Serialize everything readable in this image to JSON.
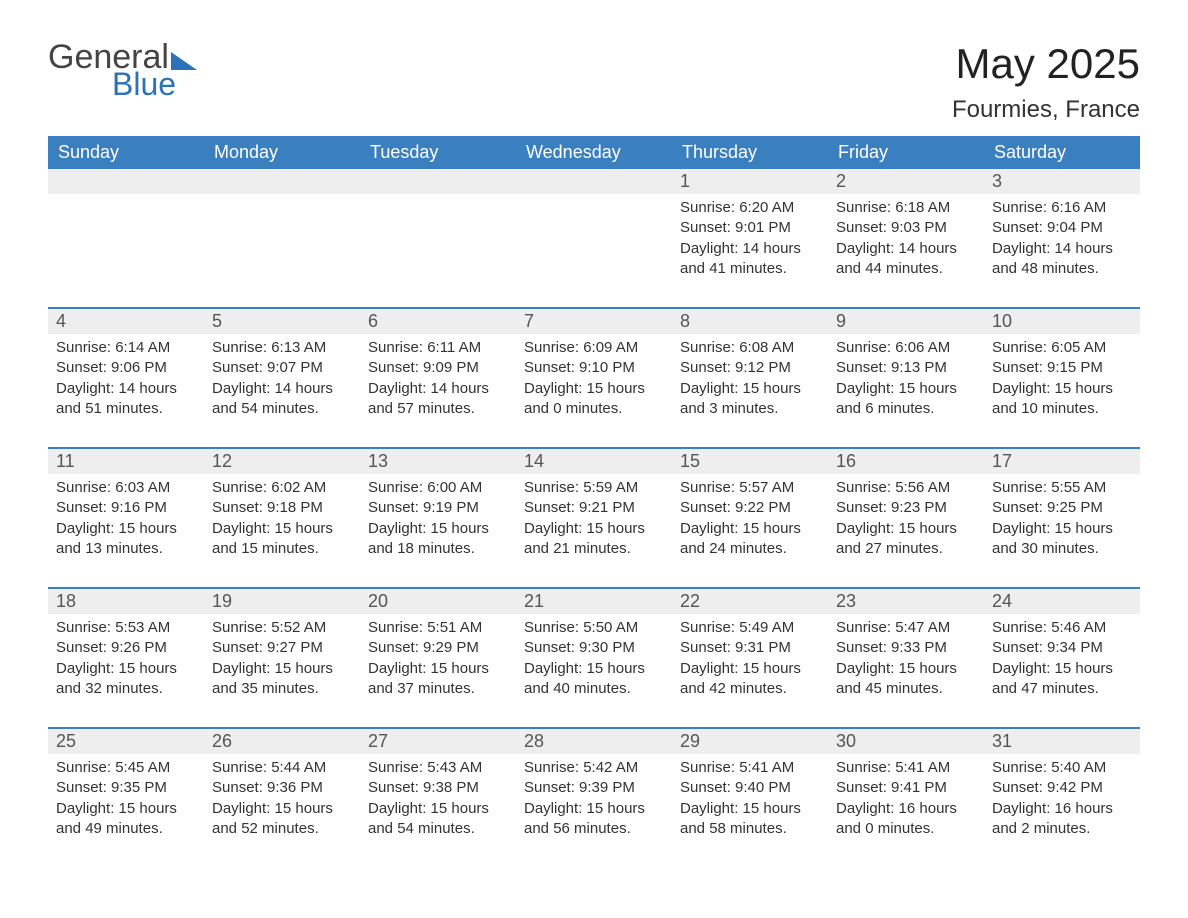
{
  "logo": {
    "general": "General",
    "blue": "Blue"
  },
  "title": "May 2025",
  "location": "Fourmies, France",
  "colors": {
    "header_bg": "#3a7fbf",
    "header_text": "#ffffff",
    "daynum_bg": "#eeeeee",
    "daynum_text": "#555555",
    "body_text": "#333333",
    "accent": "#2b72b8",
    "page_bg": "#ffffff"
  },
  "dow": [
    "Sunday",
    "Monday",
    "Tuesday",
    "Wednesday",
    "Thursday",
    "Friday",
    "Saturday"
  ],
  "labels": {
    "sunrise": "Sunrise:",
    "sunset": "Sunset:",
    "daylight": "Daylight:"
  },
  "weeks": [
    [
      {
        "n": "",
        "empty": true
      },
      {
        "n": "",
        "empty": true
      },
      {
        "n": "",
        "empty": true
      },
      {
        "n": "",
        "empty": true
      },
      {
        "n": "1",
        "sunrise": "6:20 AM",
        "sunset": "9:01 PM",
        "daylight": "14 hours and 41 minutes."
      },
      {
        "n": "2",
        "sunrise": "6:18 AM",
        "sunset": "9:03 PM",
        "daylight": "14 hours and 44 minutes."
      },
      {
        "n": "3",
        "sunrise": "6:16 AM",
        "sunset": "9:04 PM",
        "daylight": "14 hours and 48 minutes."
      }
    ],
    [
      {
        "n": "4",
        "sunrise": "6:14 AM",
        "sunset": "9:06 PM",
        "daylight": "14 hours and 51 minutes."
      },
      {
        "n": "5",
        "sunrise": "6:13 AM",
        "sunset": "9:07 PM",
        "daylight": "14 hours and 54 minutes."
      },
      {
        "n": "6",
        "sunrise": "6:11 AM",
        "sunset": "9:09 PM",
        "daylight": "14 hours and 57 minutes."
      },
      {
        "n": "7",
        "sunrise": "6:09 AM",
        "sunset": "9:10 PM",
        "daylight": "15 hours and 0 minutes."
      },
      {
        "n": "8",
        "sunrise": "6:08 AM",
        "sunset": "9:12 PM",
        "daylight": "15 hours and 3 minutes."
      },
      {
        "n": "9",
        "sunrise": "6:06 AM",
        "sunset": "9:13 PM",
        "daylight": "15 hours and 6 minutes."
      },
      {
        "n": "10",
        "sunrise": "6:05 AM",
        "sunset": "9:15 PM",
        "daylight": "15 hours and 10 minutes."
      }
    ],
    [
      {
        "n": "11",
        "sunrise": "6:03 AM",
        "sunset": "9:16 PM",
        "daylight": "15 hours and 13 minutes."
      },
      {
        "n": "12",
        "sunrise": "6:02 AM",
        "sunset": "9:18 PM",
        "daylight": "15 hours and 15 minutes."
      },
      {
        "n": "13",
        "sunrise": "6:00 AM",
        "sunset": "9:19 PM",
        "daylight": "15 hours and 18 minutes."
      },
      {
        "n": "14",
        "sunrise": "5:59 AM",
        "sunset": "9:21 PM",
        "daylight": "15 hours and 21 minutes."
      },
      {
        "n": "15",
        "sunrise": "5:57 AM",
        "sunset": "9:22 PM",
        "daylight": "15 hours and 24 minutes."
      },
      {
        "n": "16",
        "sunrise": "5:56 AM",
        "sunset": "9:23 PM",
        "daylight": "15 hours and 27 minutes."
      },
      {
        "n": "17",
        "sunrise": "5:55 AM",
        "sunset": "9:25 PM",
        "daylight": "15 hours and 30 minutes."
      }
    ],
    [
      {
        "n": "18",
        "sunrise": "5:53 AM",
        "sunset": "9:26 PM",
        "daylight": "15 hours and 32 minutes."
      },
      {
        "n": "19",
        "sunrise": "5:52 AM",
        "sunset": "9:27 PM",
        "daylight": "15 hours and 35 minutes."
      },
      {
        "n": "20",
        "sunrise": "5:51 AM",
        "sunset": "9:29 PM",
        "daylight": "15 hours and 37 minutes."
      },
      {
        "n": "21",
        "sunrise": "5:50 AM",
        "sunset": "9:30 PM",
        "daylight": "15 hours and 40 minutes."
      },
      {
        "n": "22",
        "sunrise": "5:49 AM",
        "sunset": "9:31 PM",
        "daylight": "15 hours and 42 minutes."
      },
      {
        "n": "23",
        "sunrise": "5:47 AM",
        "sunset": "9:33 PM",
        "daylight": "15 hours and 45 minutes."
      },
      {
        "n": "24",
        "sunrise": "5:46 AM",
        "sunset": "9:34 PM",
        "daylight": "15 hours and 47 minutes."
      }
    ],
    [
      {
        "n": "25",
        "sunrise": "5:45 AM",
        "sunset": "9:35 PM",
        "daylight": "15 hours and 49 minutes."
      },
      {
        "n": "26",
        "sunrise": "5:44 AM",
        "sunset": "9:36 PM",
        "daylight": "15 hours and 52 minutes."
      },
      {
        "n": "27",
        "sunrise": "5:43 AM",
        "sunset": "9:38 PM",
        "daylight": "15 hours and 54 minutes."
      },
      {
        "n": "28",
        "sunrise": "5:42 AM",
        "sunset": "9:39 PM",
        "daylight": "15 hours and 56 minutes."
      },
      {
        "n": "29",
        "sunrise": "5:41 AM",
        "sunset": "9:40 PM",
        "daylight": "15 hours and 58 minutes."
      },
      {
        "n": "30",
        "sunrise": "5:41 AM",
        "sunset": "9:41 PM",
        "daylight": "16 hours and 0 minutes."
      },
      {
        "n": "31",
        "sunrise": "5:40 AM",
        "sunset": "9:42 PM",
        "daylight": "16 hours and 2 minutes."
      }
    ]
  ]
}
